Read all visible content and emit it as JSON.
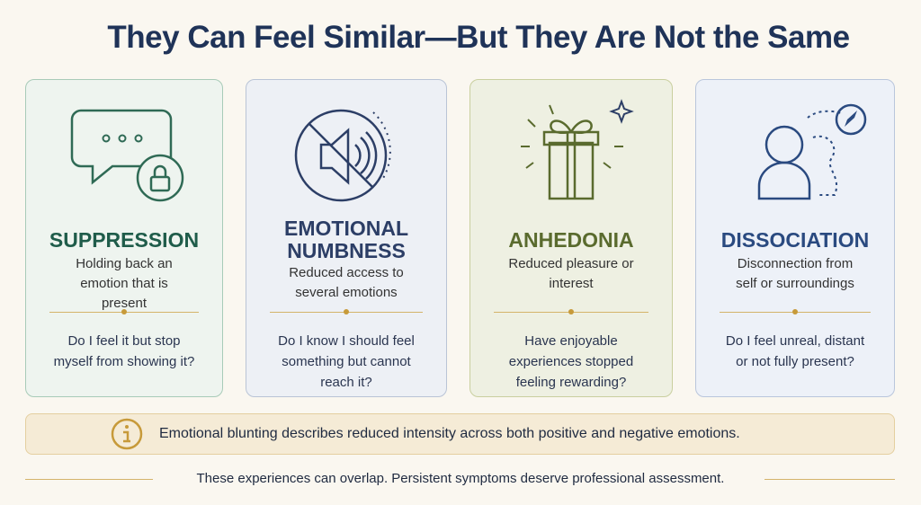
{
  "title": "They Can Feel Similar—But They Are Not the Same",
  "cards": [
    {
      "title": "SUPPRESSION",
      "description": "Holding back an emotion that is present",
      "question": "Do I feel it but stop myself from showing it?"
    },
    {
      "title": "EMOTIONAL NUMBNESS",
      "description": "Reduced access to several emotions",
      "question": "Do I know I should feel something but cannot reach it?"
    },
    {
      "title": "ANHEDONIA",
      "description": "Reduced pleasure or interest",
      "question": "Have enjoyable experiences stopped feeling rewarding?"
    },
    {
      "title": "DISSOCIATION",
      "description": "Disconnection from self or surroundings",
      "question": "Do I feel unreal, distant or not fully present?"
    }
  ],
  "note": "Emotional blunting describes reduced intensity across both positive and negative emotions.",
  "footer": "These experiences can overlap. Persistent symptoms deserve professional assessment."
}
